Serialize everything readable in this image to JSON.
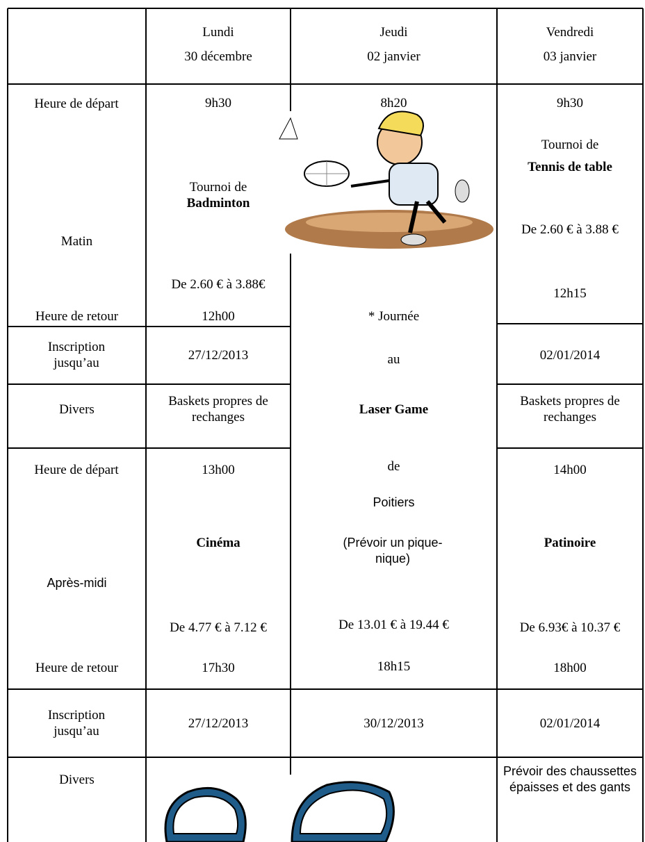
{
  "header": {
    "columns": [
      {
        "day": "Lundi",
        "date": "30 décembre"
      },
      {
        "day": "Jeudi",
        "date": "02 janvier"
      },
      {
        "day": "Vendredi",
        "date": "03 janvier"
      }
    ]
  },
  "morning": {
    "labels": {
      "depart": "Heure de départ",
      "period": "Matin",
      "retour": "Heure de retour",
      "inscription": "Inscription jusqu’au",
      "divers": "Divers"
    },
    "lundi": {
      "depart": "9h30",
      "activity_prefix": "Tournoi de",
      "activity": "Badminton",
      "price": "De 2.60 € à 3.88€",
      "retour": "12h00",
      "inscription": "27/12/2013",
      "divers": "Baskets propres de rechanges"
    },
    "vendredi": {
      "depart": "9h30",
      "activity_prefix": "Tournoi de",
      "activity": "Tennis de table",
      "price": "De 2.60 € à 3.88 €",
      "retour": "12h15",
      "inscription": "02/01/2014",
      "divers": "Baskets propres de rechanges"
    }
  },
  "jeudi": {
    "depart": "8h20",
    "line1": "* Journée",
    "line2": "au",
    "activity": "Laser Game",
    "line3": "de",
    "place": "Poitiers",
    "note": "(Prévoir un pique-nique)",
    "price": "De 13.01 € à 19.44 €",
    "retour": "18h15",
    "inscription": "30/12/2013"
  },
  "afternoon": {
    "labels": {
      "depart": "Heure de départ",
      "period": "Après-midi",
      "retour": "Heure de retour",
      "inscription": "Inscription jusqu’au",
      "divers": "Divers"
    },
    "lundi": {
      "depart": "13h00",
      "activity": "Cinéma",
      "price": "De 4.77 € à 7.12 €",
      "retour": "17h30",
      "inscription": "27/12/2013"
    },
    "vendredi": {
      "depart": "14h00",
      "activity": "Patinoire",
      "price": "De 6.93€ à 10.37 €",
      "retour": "18h00",
      "inscription": "02/01/2014",
      "divers": "Prévoir des chaussettes épaisses et des gants"
    }
  }
}
